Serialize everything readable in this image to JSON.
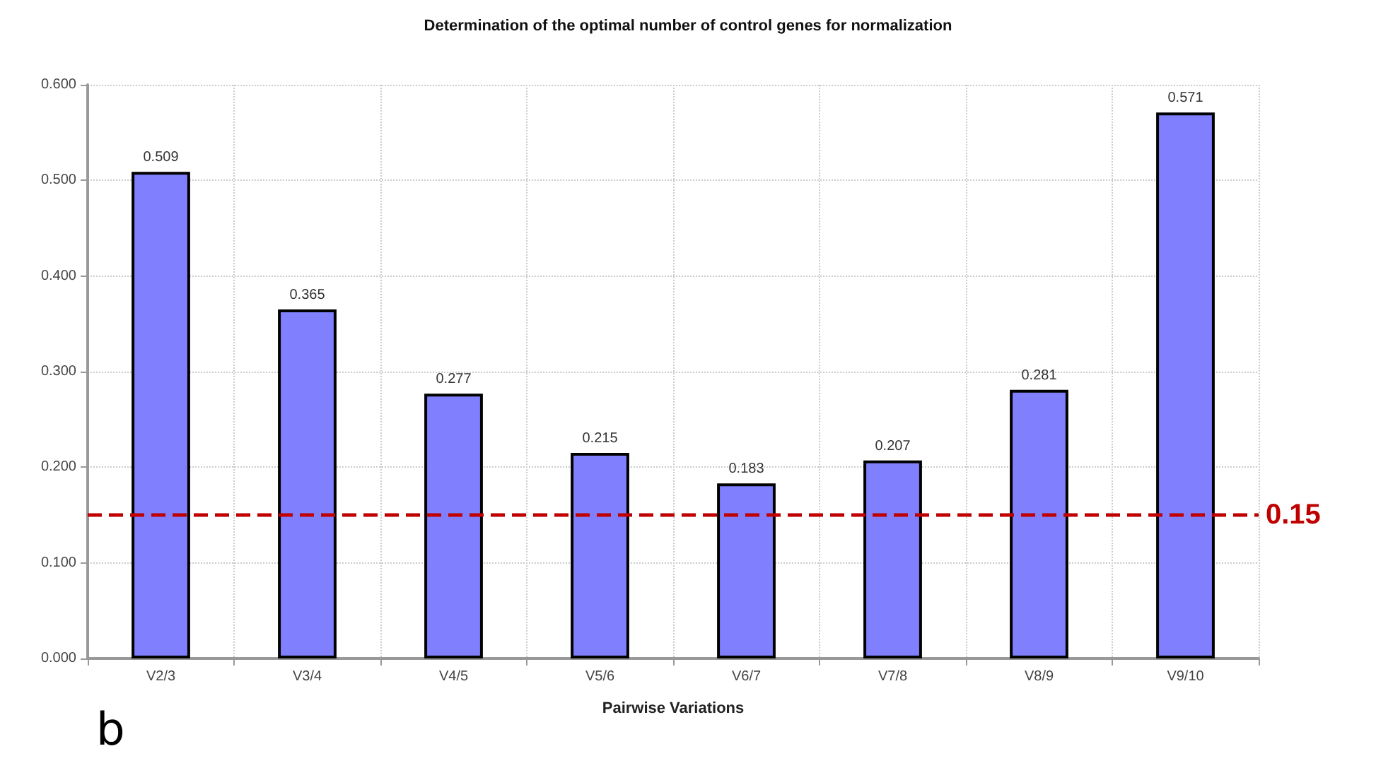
{
  "chart_data": {
    "type": "bar",
    "title": "Determination of the optimal number of control genes for normalization",
    "xlabel": "Pairwise Variations",
    "categories": [
      "V2/3",
      "V3/4",
      "V4/5",
      "V5/6",
      "V6/7",
      "V7/8",
      "V8/9",
      "V9/10"
    ],
    "values": [
      0.509,
      0.365,
      0.277,
      0.215,
      0.183,
      0.207,
      0.281,
      0.571
    ],
    "color": "#8080ff",
    "data_labels": true,
    "ylim": [
      0,
      0.6
    ],
    "yticks": [
      {
        "value": 0,
        "label": "0.000"
      },
      {
        "value": 0.1,
        "label": "0.100"
      },
      {
        "value": 0.2,
        "label": "0.200"
      },
      {
        "value": 0.3,
        "label": "0.300"
      },
      {
        "value": 0.4,
        "label": "0.400"
      },
      {
        "value": 0.5,
        "label": "0.500"
      },
      {
        "value": 0.6,
        "label": "0.600"
      }
    ],
    "grid": true,
    "ref_lines": [
      {
        "axis": "y",
        "value": 0.15,
        "label": "0.15",
        "color": "#c00000",
        "line_style": "dashed"
      }
    ],
    "annotations": [
      "b"
    ]
  }
}
